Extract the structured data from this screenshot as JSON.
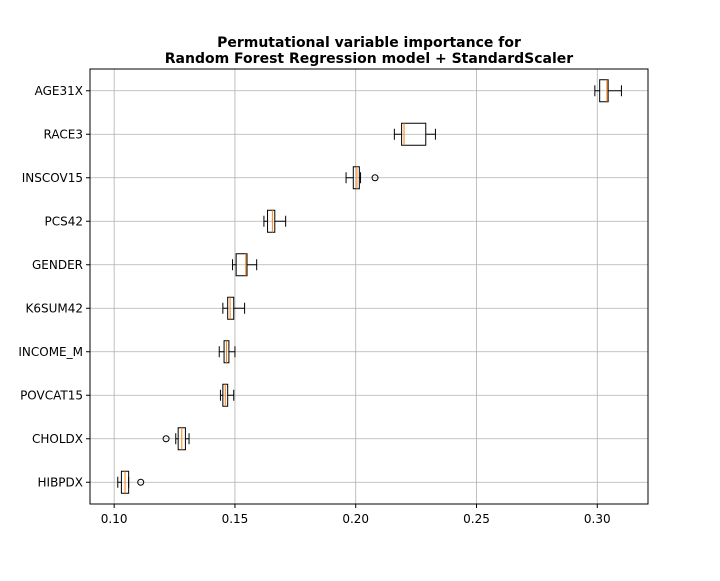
{
  "chart_data": {
    "type": "boxplot",
    "orientation": "horizontal",
    "title_line1": "Permutational variable importance for",
    "title_line2": "Random Forest Regression model + StandardScaler",
    "xlabel": "",
    "ylabel": "",
    "xlim": [
      0.09,
      0.321
    ],
    "xticks": [
      0.1,
      0.15,
      0.2,
      0.25,
      0.3
    ],
    "xtick_labels": [
      "0.10",
      "0.15",
      "0.20",
      "0.25",
      "0.30"
    ],
    "grid": true,
    "colors": {
      "box": "#000000",
      "median": "#ff7f0e",
      "grid": "#b0b0b0"
    },
    "boxes": [
      {
        "label": "AGE31X",
        "whislo": 0.299,
        "q1": 0.301,
        "med": 0.304,
        "q3": 0.3045,
        "whishi": 0.31,
        "fliers": []
      },
      {
        "label": "RACE3",
        "whislo": 0.216,
        "q1": 0.219,
        "med": 0.22,
        "q3": 0.229,
        "whishi": 0.233,
        "fliers": []
      },
      {
        "label": "INSCOV15",
        "whislo": 0.196,
        "q1": 0.199,
        "med": 0.2005,
        "q3": 0.2015,
        "whishi": 0.202,
        "fliers": [
          0.208
        ]
      },
      {
        "label": "PCS42",
        "whislo": 0.162,
        "q1": 0.1635,
        "med": 0.1655,
        "q3": 0.1665,
        "whishi": 0.171,
        "fliers": []
      },
      {
        "label": "GENDER",
        "whislo": 0.149,
        "q1": 0.1505,
        "med": 0.1545,
        "q3": 0.155,
        "whishi": 0.159,
        "fliers": []
      },
      {
        "label": "K6SUM42",
        "whislo": 0.145,
        "q1": 0.147,
        "med": 0.148,
        "q3": 0.1495,
        "whishi": 0.154,
        "fliers": []
      },
      {
        "label": "INCOME_M",
        "whislo": 0.1435,
        "q1": 0.1455,
        "med": 0.1465,
        "q3": 0.1475,
        "whishi": 0.15,
        "fliers": []
      },
      {
        "label": "POVCAT15",
        "whislo": 0.144,
        "q1": 0.145,
        "med": 0.146,
        "q3": 0.147,
        "whishi": 0.1495,
        "fliers": []
      },
      {
        "label": "CHOLDX",
        "whislo": 0.1255,
        "q1": 0.1265,
        "med": 0.128,
        "q3": 0.1295,
        "whishi": 0.131,
        "fliers": [
          0.1215
        ]
      },
      {
        "label": "HIBPDX",
        "whislo": 0.1015,
        "q1": 0.103,
        "med": 0.1045,
        "q3": 0.106,
        "whishi": 0.106,
        "fliers": [
          0.111
        ]
      }
    ]
  }
}
